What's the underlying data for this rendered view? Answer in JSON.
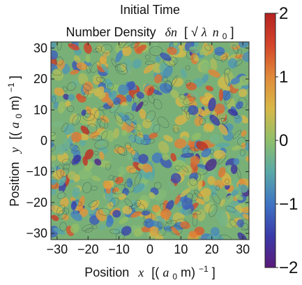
{
  "chart_data": {
    "type": "heatmap",
    "title": "Initial Time",
    "subtitle": "Number Density  δn [√λ n₀]",
    "subtitle_parts": {
      "prefix": "Number Density",
      "symbol": "δn",
      "unit_open": "[",
      "unit_sqrt": "√",
      "unit_lambda": "λ",
      "unit_n": "n",
      "unit_sub": "0",
      "unit_close": "]"
    },
    "xlabel": "Position  x [(a₀m)⁻¹]",
    "ylabel": "Position  y [(a₀m)⁻¹]",
    "xlabel_parts": {
      "prefix": "Position",
      "var": "x",
      "open": "[(",
      "a": "a",
      "sub": "0",
      "m": "m)",
      "exp": "−1",
      "close": "]"
    },
    "ylabel_parts": {
      "prefix": "Position",
      "var": "y",
      "open": "[(",
      "a": "a",
      "sub": "0",
      "m": "m)",
      "exp": "−1",
      "close": "]"
    },
    "xlim": [
      -32,
      32
    ],
    "ylim": [
      -32,
      32
    ],
    "xticks": [
      -30,
      -20,
      -10,
      0,
      10,
      20,
      30
    ],
    "yticks": [
      -30,
      -20,
      -10,
      0,
      10,
      20,
      30
    ],
    "xtick_labels": [
      "−30",
      "−20",
      "−10",
      "0",
      "10",
      "20",
      "30"
    ],
    "ytick_labels": [
      "−30",
      "−20",
      "−10",
      "0",
      "10",
      "20",
      "30"
    ],
    "colorbar": {
      "range": [
        -2,
        2
      ],
      "ticks": [
        -2,
        -1,
        0,
        1,
        2
      ],
      "tick_labels": [
        "−2",
        "−1",
        "0",
        "1",
        "2"
      ],
      "colors": [
        "#5a1a7a",
        "#3a3aa8",
        "#3f74c4",
        "#59a8a8",
        "#8fbf6a",
        "#d8b848",
        "#e08a3a",
        "#d4452a",
        "#b52222"
      ]
    },
    "field": "random fluctuations of number density δn around 0 with contour lines; values span approximately −2 to 2"
  }
}
